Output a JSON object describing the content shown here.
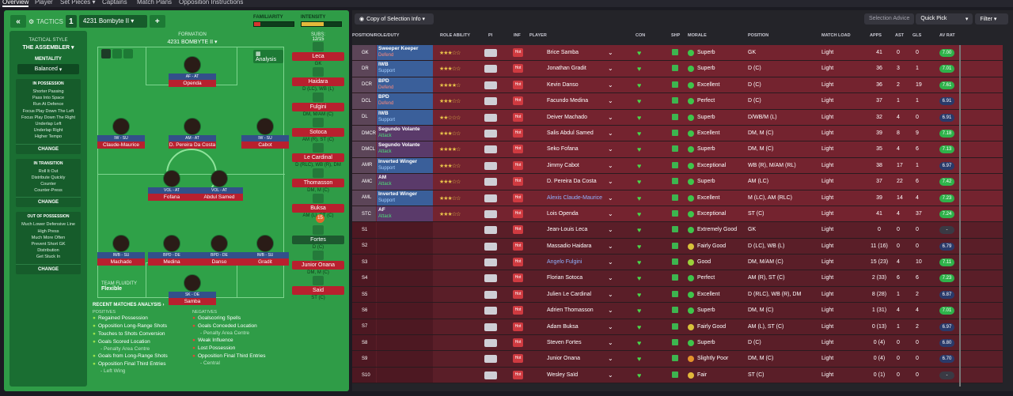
{
  "topnav": [
    "Overview",
    "Player",
    "Set Pieces ▾",
    "Captains",
    "Match Plans",
    "Opposition Instructions"
  ],
  "tactics": {
    "label": "TACTICS",
    "slot": "1",
    "name": "4231 Bombyte II ▾",
    "add": "+",
    "familiarity": "FAMILIARITY",
    "intensity": "INTENSITY",
    "familiarity_value": 0.15,
    "intensity_value": 0.55,
    "tactical_style_label": "TACTICAL STYLE",
    "tactical_style": "THE ASSEMBLER ▾",
    "mentality_label": "MENTALITY",
    "mentality": "Balanced",
    "in_possession": {
      "title": "IN POSSESSION",
      "items": [
        "Shorter Passing",
        "Pass Into Space",
        "Run At Defence",
        "Focus Play Down The Left",
        "Focus Play Down The Right",
        "Underlap Left",
        "Underlap Right",
        "Higher Tempo"
      ],
      "change": "CHANGE"
    },
    "in_transition": {
      "title": "IN TRANSITION",
      "items": [
        "Roll It Out",
        "Distribute Quickly",
        "Counter",
        "Counter-Press"
      ],
      "change": "CHANGE"
    },
    "out_of_possession": {
      "title": "OUT OF POSSESSION",
      "items": [
        "Much Lower Defensive Line",
        "High Press",
        "Much More Often",
        "Prevent Short GK",
        "Distribution",
        "Get Stuck In"
      ],
      "change": "CHANGE"
    },
    "formation_label": "FORMATION",
    "formation": "4231 BOMBYTE II ▾",
    "analysis": "Analysis",
    "subs_label": "SUBS:",
    "subs_count": "12/15",
    "team_fluidity_label": "TEAM FLUIDITY",
    "team_fluidity": "Flexible",
    "recent_label": "RECENT MATCHES ANALYSIS ›",
    "positives_label": "POSITIVES",
    "negatives_label": "NEGATIVES",
    "positives": [
      {
        "t": "Regained Possession"
      },
      {
        "t": "Opposition Long-Range Shots"
      },
      {
        "t": "Touches to Shots Conversion"
      },
      {
        "t": "Goals Scored Location",
        "s": "- Penalty Area Centre"
      },
      {
        "t": "Goals from Long-Range Shots"
      },
      {
        "t": "Opposition Final Third Entries",
        "s": "- Left Wing"
      }
    ],
    "negatives": [
      {
        "t": "Goalscoring Spells"
      },
      {
        "t": "Goals Conceded Location",
        "s": "- Penalty Area Centre"
      },
      {
        "t": "Weak Influence"
      },
      {
        "t": "Lost Possession"
      },
      {
        "t": "Opposition Final Third Entries",
        "s": "- Central"
      }
    ],
    "players": [
      {
        "role": "AF - AT",
        "name": "Openda"
      },
      {
        "role": "IW - SU",
        "name": "Claude-Maurice"
      },
      {
        "role": "AM - AT",
        "name": "D. Pereira Da Costa"
      },
      {
        "role": "IW - SU",
        "name": "Cabot"
      },
      {
        "role": "VOL - AT",
        "name": "Fofana"
      },
      {
        "role": "VOL - AT",
        "name": "Abdul Samed"
      },
      {
        "role": "IWB - SU",
        "name": "Machado"
      },
      {
        "role": "BPD - DE",
        "name": "Medina"
      },
      {
        "role": "BPD - DE",
        "name": "Danso"
      },
      {
        "role": "IWB - SU",
        "name": "Gradit"
      },
      {
        "role": "SK - DE",
        "name": "Samba"
      }
    ],
    "subs": [
      {
        "name": "Leca",
        "pos": "GK"
      },
      {
        "name": "Haidara",
        "pos": "D (LC), WB (L)"
      },
      {
        "name": "Fulgini",
        "pos": "DM, M/AM (C)"
      },
      {
        "name": "Sotoca",
        "pos": "AM (R), ST (C)"
      },
      {
        "name": "Le Cardinal",
        "pos": "D (RLC), WB (R), DM"
      },
      {
        "name": "Thomasson",
        "pos": "DM, M (C)"
      },
      {
        "name": "Buksa",
        "pos": "AM (L), ST (C)"
      },
      {
        "name": "Fortes",
        "pos": "D (C)"
      },
      {
        "name": "Junior Onana",
        "pos": "DM, M (C)"
      },
      {
        "name": "Said",
        "pos": "ST (C)"
      }
    ],
    "sub_badge": "15"
  },
  "selection": {
    "view": "Copy of Selection Info ▾",
    "advice": "Selection Advice",
    "quick_pick": "Quick Pick",
    "filter": "Filter ▾",
    "headers": [
      "POSITION/ROLE/DUTY",
      "ROLE ABILITY",
      "PI",
      "INF",
      "PLAYER",
      "CON",
      "SHP",
      "MORALE",
      "POSITION",
      "MATCH LOAD",
      "APPS",
      "AST",
      "GLS",
      "AV RAT"
    ],
    "rows": [
      {
        "pos": "GK",
        "role": "Sweeper Keeper",
        "duty": "Defend",
        "stars": "★★★☆☆",
        "name": "Brice Samba",
        "morale": "Superb",
        "position": "GK",
        "load": "Light",
        "apps": "41",
        "ast": "0",
        "gls": "0",
        "rat": "7.00"
      },
      {
        "pos": "DR",
        "role": "IWB",
        "duty": "Support",
        "stars": "★★★☆☆",
        "name": "Jonathan Gradit",
        "morale": "Superb",
        "position": "D (C)",
        "load": "Light",
        "apps": "36",
        "ast": "3",
        "gls": "1",
        "rat": "7.01"
      },
      {
        "pos": "DCR",
        "role": "BPD",
        "duty": "Defend",
        "stars": "★★★★☆",
        "name": "Kevin Danso",
        "morale": "Excellent",
        "position": "D (C)",
        "load": "Light",
        "apps": "36",
        "ast": "2",
        "gls": "19",
        "rat": "7.61"
      },
      {
        "pos": "DCL",
        "role": "BPD",
        "duty": "Defend",
        "stars": "★★★☆☆",
        "name": "Facundo Medina",
        "morale": "Perfect",
        "position": "D (C)",
        "load": "Light",
        "apps": "37",
        "ast": "1",
        "gls": "1",
        "rat": "6.91"
      },
      {
        "pos": "DL",
        "role": "IWB",
        "duty": "Support",
        "stars": "★★☆☆☆",
        "name": "Deiver Machado",
        "morale": "Superb",
        "position": "D/WB/M (L)",
        "load": "Light",
        "apps": "32",
        "ast": "4",
        "gls": "0",
        "rat": "6.91"
      },
      {
        "pos": "DMCR",
        "role": "Segundo Volante",
        "duty": "Attack",
        "stars": "★★★☆☆",
        "name": "Salis Abdul Samed",
        "morale": "Excellent",
        "position": "DM, M (C)",
        "load": "Light",
        "apps": "39",
        "ast": "8",
        "gls": "9",
        "rat": "7.18"
      },
      {
        "pos": "DMCL",
        "role": "Segundo Volante",
        "duty": "Attack",
        "stars": "★★★★☆",
        "name": "Seko Fofana",
        "morale": "Superb",
        "position": "DM, M (C)",
        "load": "Light",
        "apps": "35",
        "ast": "4",
        "gls": "6",
        "rat": "7.13"
      },
      {
        "pos": "AMR",
        "role": "Inverted Winger",
        "duty": "Support",
        "stars": "★★★☆☆",
        "name": "Jimmy Cabot",
        "morale": "Exceptional",
        "position": "WB (R), M/AM (RL)",
        "load": "Light",
        "apps": "38",
        "ast": "17",
        "gls": "1",
        "rat": "6.97"
      },
      {
        "pos": "AMC",
        "role": "AM",
        "duty": "Attack",
        "stars": "★★★☆☆",
        "name": "D. Pereira Da Costa",
        "morale": "Superb",
        "position": "AM (LC)",
        "load": "Light",
        "apps": "37",
        "ast": "22",
        "gls": "6",
        "rat": "7.42"
      },
      {
        "pos": "AML",
        "role": "Inverted Winger",
        "duty": "Support",
        "stars": "★★★☆☆",
        "name": "Alexis Claude-Maurice",
        "morale": "Excellent",
        "position": "M (LC), AM (RLC)",
        "load": "Light",
        "apps": "39",
        "ast": "14",
        "gls": "4",
        "rat": "7.23"
      },
      {
        "pos": "STC",
        "role": "AF",
        "duty": "Attack",
        "stars": "★★★☆☆",
        "name": "Lois Openda",
        "morale": "Exceptional",
        "position": "ST (C)",
        "load": "Light",
        "apps": "41",
        "ast": "4",
        "gls": "37",
        "rat": "7.24"
      },
      {
        "pos": "S1",
        "role": "",
        "duty": "",
        "stars": "",
        "name": "Jean-Louis Leca",
        "morale": "Extremely Good",
        "position": "GK",
        "load": "Light",
        "apps": "0",
        "ast": "0",
        "gls": "0",
        "rat": "-"
      },
      {
        "pos": "S2",
        "role": "",
        "duty": "",
        "stars": "",
        "name": "Massadio Haidara",
        "morale": "Fairly Good",
        "position": "D (LC), WB (L)",
        "load": "Light",
        "apps": "11 (16)",
        "ast": "0",
        "gls": "0",
        "rat": "6.79"
      },
      {
        "pos": "S3",
        "role": "",
        "duty": "",
        "stars": "",
        "name": "Angelo Fulgini",
        "morale": "Good",
        "position": "DM, M/AM (C)",
        "load": "Light",
        "apps": "15 (23)",
        "ast": "4",
        "gls": "10",
        "rat": "7.11"
      },
      {
        "pos": "S4",
        "role": "",
        "duty": "",
        "stars": "",
        "name": "Florian Sotoca",
        "morale": "Perfect",
        "position": "AM (R), ST (C)",
        "load": "Light",
        "apps": "2 (33)",
        "ast": "6",
        "gls": "6",
        "rat": "7.23"
      },
      {
        "pos": "S5",
        "role": "",
        "duty": "",
        "stars": "",
        "name": "Julien Le Cardinal",
        "morale": "Excellent",
        "position": "D (RLC), WB (R), DM",
        "load": "Light",
        "apps": "8 (28)",
        "ast": "1",
        "gls": "2",
        "rat": "6.87"
      },
      {
        "pos": "S6",
        "role": "",
        "duty": "",
        "stars": "",
        "name": "Adrien Thomasson",
        "morale": "Superb",
        "position": "DM, M (C)",
        "load": "Light",
        "apps": "1 (31)",
        "ast": "4",
        "gls": "4",
        "rat": "7.01"
      },
      {
        "pos": "S7",
        "role": "",
        "duty": "",
        "stars": "",
        "name": "Adam Buksa",
        "morale": "Fairly Good",
        "position": "AM (L), ST (C)",
        "load": "Light",
        "apps": "0 (13)",
        "ast": "1",
        "gls": "2",
        "rat": "6.97"
      },
      {
        "pos": "S8",
        "role": "",
        "duty": "",
        "stars": "",
        "name": "Steven Fortes",
        "morale": "Superb",
        "position": "D (C)",
        "load": "Light",
        "apps": "0 (4)",
        "ast": "0",
        "gls": "0",
        "rat": "6.80"
      },
      {
        "pos": "S9",
        "role": "",
        "duty": "",
        "stars": "",
        "name": "Junior Onana",
        "morale": "Slightly Poor",
        "position": "DM, M (C)",
        "load": "Light",
        "apps": "0 (4)",
        "ast": "0",
        "gls": "0",
        "rat": "6.70"
      },
      {
        "pos": "S10",
        "role": "",
        "duty": "",
        "stars": "",
        "name": "Wesley Saïd",
        "morale": "Fair",
        "position": "ST (C)",
        "load": "Light",
        "apps": "0 (1)",
        "ast": "0",
        "gls": "0",
        "rat": "-"
      }
    ],
    "hot_label": "Hot"
  },
  "colors": {
    "green": "#2f9c47",
    "red_row": "#7a2530",
    "purple_row": "#4a3550",
    "sub_row": "#5c1f28"
  }
}
